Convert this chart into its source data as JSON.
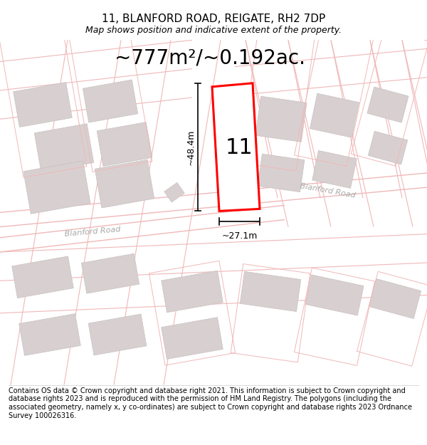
{
  "title": "11, BLANFORD ROAD, REIGATE, RH2 7DP",
  "subtitle": "Map shows position and indicative extent of the property.",
  "area_label": "~777m²/~0.192ac.",
  "number_label": "11",
  "dim_height": "~48.4m",
  "dim_width": "~27.1m",
  "road_label1": "Blanford Road",
  "road_label2": "Blanford Road",
  "footer": "Contains OS data © Crown copyright and database right 2021. This information is subject to Crown copyright and database rights 2023 and is reproduced with the permission of HM Land Registry. The polygons (including the associated geometry, namely x, y co-ordinates) are subject to Crown copyright and database rights 2023 Ordnance Survey 100026316.",
  "bg_color": "#ffffff",
  "map_bg": "#ffffff",
  "road_line_color": "#f0b8b8",
  "building_fill": "#d8d0d0",
  "building_edge": "#c8c0c0",
  "property_color": "#ff0000",
  "dim_color": "#000000",
  "title_fontsize": 11,
  "subtitle_fontsize": 9,
  "area_fontsize": 20,
  "footer_fontsize": 7,
  "road_text_color": "#aaaaaa",
  "road_text_size": 8
}
